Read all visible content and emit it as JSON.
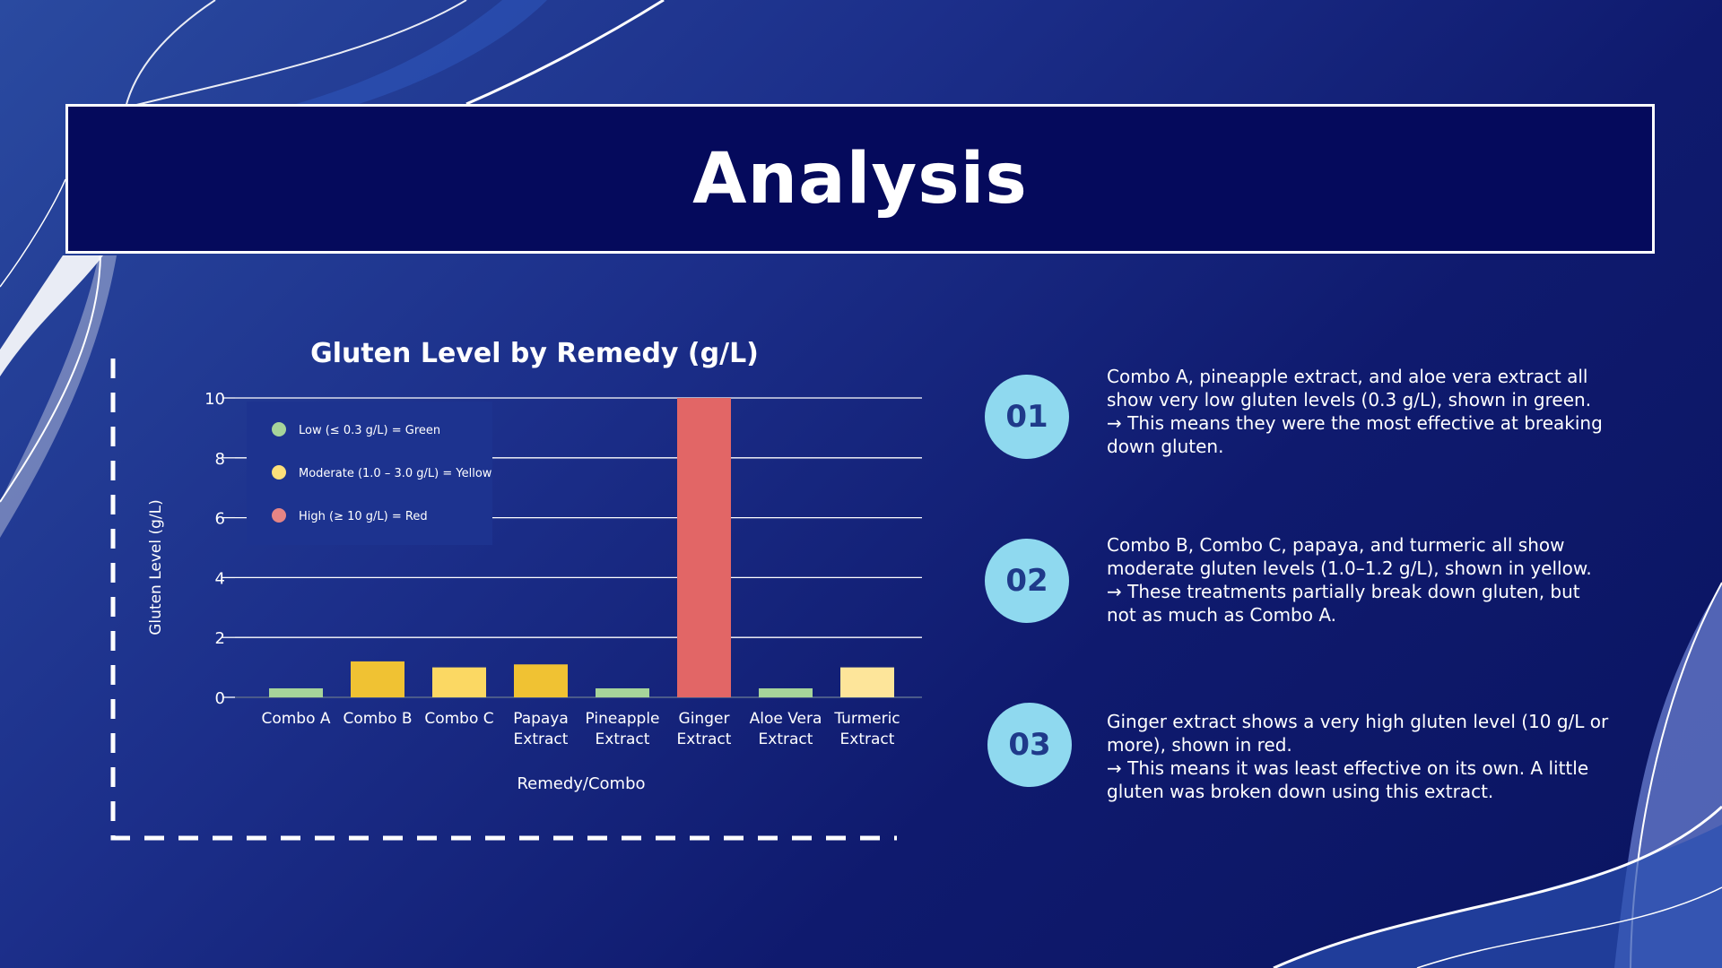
{
  "slide": {
    "title": "Analysis"
  },
  "colors": {
    "green": "#a6d49a",
    "yellow": "#f0c233",
    "light_yellow": "#fbd863",
    "pale_yellow": "#fde59a",
    "red": "#e26666",
    "badge": "#8fd9ef"
  },
  "chart_data": {
    "type": "bar",
    "title": "Gluten Level by Remedy (g/L)",
    "xlabel": "Remedy/Combo",
    "ylabel": "Gluten Level (g/L)",
    "ylim": [
      0,
      10
    ],
    "yticks": [
      0,
      2,
      4,
      6,
      8,
      10
    ],
    "grid": true,
    "legend_placement": "top-left",
    "categories": [
      [
        "Combo A"
      ],
      [
        "Combo B"
      ],
      [
        "Combo C"
      ],
      [
        "Papaya",
        "Extract"
      ],
      [
        "Pineapple",
        "Extract"
      ],
      [
        "Ginger",
        "Extract"
      ],
      [
        "Aloe Vera",
        "Extract"
      ],
      [
        "Turmeric",
        "Extract"
      ]
    ],
    "values": [
      0.3,
      1.2,
      1.0,
      1.1,
      0.3,
      10,
      0.3,
      1.0
    ],
    "bar_colors": [
      "#a6d49a",
      "#f0c233",
      "#fbd863",
      "#f0c233",
      "#a6d49a",
      "#e26666",
      "#a6d49a",
      "#fde59a"
    ],
    "legend": [
      {
        "label": "Low (≤ 0.3 g/L) = Green",
        "color": "#a6d49a"
      },
      {
        "label": "Moderate (1.0 – 3.0 g/L) = Yellow",
        "color": "#fde07a"
      },
      {
        "label": "High (≥ 10 g/L) = Red",
        "color": "#e58585"
      }
    ]
  },
  "points": [
    {
      "number": "01",
      "lines": [
        "Combo A, pineapple extract, and aloe vera extract all",
        "show very low gluten levels (0.3 g/L), shown in green.",
        " → This means they were the most effective at breaking",
        "down gluten."
      ]
    },
    {
      "number": "02",
      "lines": [
        "Combo B, Combo C, papaya, and turmeric all show",
        "moderate gluten levels (1.0–1.2 g/L), shown in yellow.",
        " → These treatments partially break down gluten, but",
        "not as much as Combo A."
      ]
    },
    {
      "number": "03",
      "lines": [
        "Ginger extract shows a very high gluten level (10 g/L or",
        "more), shown in red.",
        " → This means it was least effective on its own. A little",
        "gluten was broken down using this extract."
      ]
    }
  ]
}
